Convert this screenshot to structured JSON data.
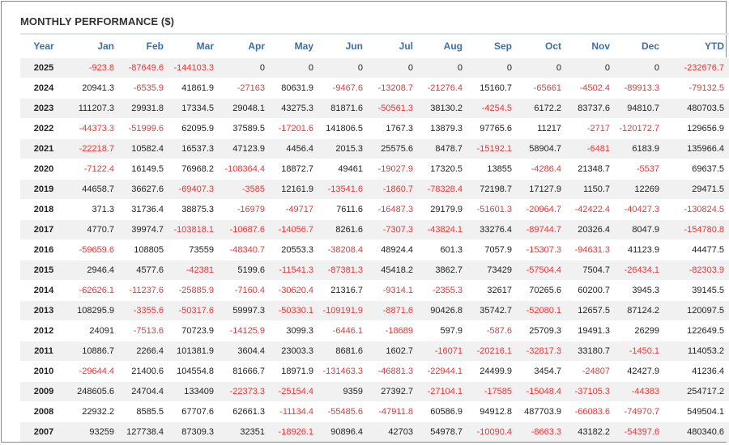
{
  "title": "MONTHLY PERFORMANCE ($)",
  "colors": {
    "negative": "#e8373a",
    "header": "#3b6fa8",
    "text": "#222222"
  },
  "chart_data": {
    "type": "table",
    "title": "MONTHLY PERFORMANCE ($)",
    "columns": [
      "Year",
      "Jan",
      "Feb",
      "Mar",
      "Apr",
      "May",
      "Jun",
      "Jul",
      "Aug",
      "Sep",
      "Oct",
      "Nov",
      "Dec",
      "YTD"
    ],
    "rows": [
      [
        "2025",
        "-923.8",
        "-87649.6",
        "-144103.3",
        "0",
        "0",
        "0",
        "0",
        "0",
        "0",
        "0",
        "0",
        "0",
        "-232676.7"
      ],
      [
        "2024",
        "20941.3",
        "-6535.9",
        "41861.9",
        "-27163",
        "80631.9",
        "-9467.6",
        "-13208.7",
        "-21276.4",
        "15160.7",
        "-65661",
        "-4502.4",
        "-89913.3",
        "-79132.5"
      ],
      [
        "2023",
        "111207.3",
        "29931.8",
        "17334.5",
        "29048.1",
        "43275.3",
        "81871.6",
        "-50561.3",
        "38130.2",
        "-4254.5",
        "6172.2",
        "83737.6",
        "94810.7",
        "480703.5"
      ],
      [
        "2022",
        "-44373.3",
        "-51999.6",
        "62095.9",
        "37589.5",
        "-17201.6",
        "141806.5",
        "1767.3",
        "13879.3",
        "97765.6",
        "11217",
        "-2717",
        "-120172.7",
        "129656.9"
      ],
      [
        "2021",
        "-22218.7",
        "10582.4",
        "16537.3",
        "47123.9",
        "4456.4",
        "2015.3",
        "25575.6",
        "8478.7",
        "-15192.1",
        "58904.7",
        "-6481",
        "6183.9",
        "135966.4"
      ],
      [
        "2020",
        "-7122.4",
        "16149.5",
        "76968.2",
        "-108364.4",
        "18872.7",
        "49461",
        "-19027.9",
        "17320.5",
        "13855",
        "-4286.4",
        "21348.7",
        "-5537",
        "69637.5"
      ],
      [
        "2019",
        "44658.7",
        "36627.6",
        "-69407.3",
        "-3585",
        "12161.9",
        "-13541.6",
        "-1860.7",
        "-78328.4",
        "72198.7",
        "17127.9",
        "1150.7",
        "12269",
        "29471.5"
      ],
      [
        "2018",
        "371.3",
        "31736.4",
        "38875.3",
        "-16979",
        "-49717",
        "7611.6",
        "-16487.3",
        "29179.9",
        "-51601.3",
        "-20964.7",
        "-42422.4",
        "-40427.3",
        "-130824.5"
      ],
      [
        "2017",
        "4770.7",
        "39974.7",
        "-103818.1",
        "-10687.6",
        "-14056.7",
        "8261.6",
        "-7307.3",
        "-43824.1",
        "33276.4",
        "-89744.7",
        "20326.4",
        "8047.9",
        "-154780.8"
      ],
      [
        "2016",
        "-59659.6",
        "108805",
        "73559",
        "-48340.7",
        "20553.3",
        "-38208.4",
        "48924.4",
        "601.3",
        "7057.9",
        "-15307.3",
        "-94631.3",
        "41123.9",
        "44477.5"
      ],
      [
        "2015",
        "2946.4",
        "4577.6",
        "-42381",
        "5199.6",
        "-11541.3",
        "-87381.3",
        "45418.2",
        "3862.7",
        "73429",
        "-57504.4",
        "7504.7",
        "-26434.1",
        "-82303.9"
      ],
      [
        "2014",
        "-62626.1",
        "-11237.6",
        "-25885.9",
        "-7160.4",
        "-30620.4",
        "21316.7",
        "-9314.1",
        "-2355.3",
        "32617",
        "70265.6",
        "60200.7",
        "3945.3",
        "39145.5"
      ],
      [
        "2013",
        "108295.9",
        "-3355.6",
        "-50317.6",
        "59997.3",
        "-50330.1",
        "-109191.9",
        "-8871.6",
        "90426.8",
        "35742.7",
        "-52080.1",
        "12657.5",
        "87124.2",
        "120097.5"
      ],
      [
        "2012",
        "24091",
        "-7513.6",
        "70723.9",
        "-14125.9",
        "3099.3",
        "-6446.1",
        "-18689",
        "597.9",
        "-587.6",
        "25709.3",
        "19491.3",
        "26299",
        "122649.5"
      ],
      [
        "2011",
        "10886.7",
        "2266.4",
        "101381.9",
        "3604.4",
        "23003.3",
        "8681.6",
        "1602.7",
        "-16071",
        "-20216.1",
        "-32817.3",
        "33180.7",
        "-1450.1",
        "114053.2"
      ],
      [
        "2010",
        "-29644.4",
        "21400.6",
        "104554.8",
        "81666.7",
        "18971.9",
        "-131463.3",
        "-46881.3",
        "-22944.1",
        "24499.9",
        "3454.7",
        "-24807",
        "42427.9",
        "41236.4"
      ],
      [
        "2009",
        "248605.6",
        "24704.4",
        "133409",
        "-22373.3",
        "-25154.4",
        "9359",
        "27392.7",
        "-27104.1",
        "-17585",
        "-15048.4",
        "-37105.3",
        "-44383",
        "254717.2"
      ],
      [
        "2008",
        "22932.2",
        "8585.5",
        "67707.6",
        "62661.3",
        "-11134.4",
        "-55485.6",
        "-47911.8",
        "60586.9",
        "94912.8",
        "487703.9",
        "-66083.6",
        "-74970.7",
        "549504.1"
      ],
      [
        "2007",
        "93259",
        "127738.4",
        "87309.3",
        "32351",
        "-18926.1",
        "90896.4",
        "42703",
        "54978.7",
        "-10090.4",
        "-8663.3",
        "43182.2",
        "-54397.6",
        "480340.6"
      ]
    ]
  }
}
